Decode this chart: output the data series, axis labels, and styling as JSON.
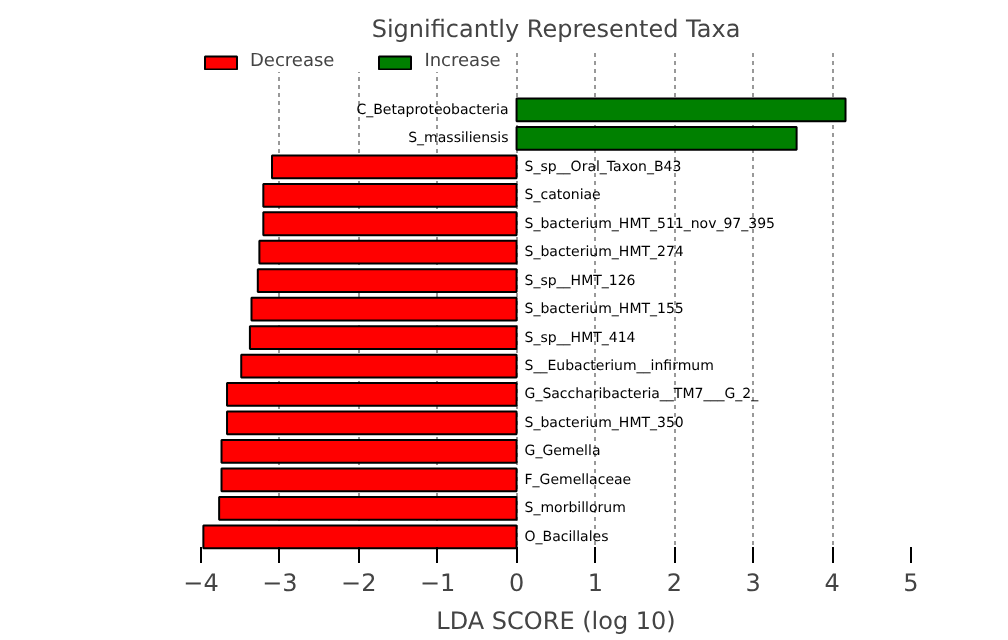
{
  "chart_data": {
    "type": "bar",
    "orientation": "horizontal",
    "title": "Significantly Represented Taxa",
    "xlabel": "LDA SCORE (log 10)",
    "categories": [
      "C_Betaproteobacteria",
      "S_massiliensis",
      "S_sp__Oral_Taxon_B43",
      "S_catoniae",
      "S_bacterium_HMT_511_nov_97_395",
      "S_bacterium_HMT_274",
      "S_sp__HMT_126",
      "S_bacterium_HMT_155",
      "S_sp__HMT_414",
      "S__Eubacterium__infirmum",
      "G_Saccharibacteria__TM7___G_2_",
      "S_bacterium_HMT_350",
      "G_Gemella",
      "F_Gemellaceae",
      "S_morbillorum",
      "O_Bacillales"
    ],
    "series": [
      {
        "name": "Decrease",
        "color": "#ff0000",
        "values": [
          null,
          null,
          -3.1,
          -3.21,
          -3.21,
          -3.26,
          -3.28,
          -3.36,
          -3.38,
          -3.49,
          -3.67,
          -3.67,
          -3.74,
          -3.74,
          -3.77,
          -3.97
        ]
      },
      {
        "name": "Increase",
        "color": "#008000",
        "values": [
          4.17,
          3.55,
          null,
          null,
          null,
          null,
          null,
          null,
          null,
          null,
          null,
          null,
          null,
          null,
          null,
          null
        ]
      }
    ],
    "xlim": [
      -4,
      5
    ],
    "xticks": [
      {
        "value": -4,
        "label": "−4"
      },
      {
        "value": -3,
        "label": "−3"
      },
      {
        "value": -2,
        "label": "−2"
      },
      {
        "value": -1,
        "label": "−1"
      },
      0,
      1,
      2,
      3,
      4,
      5
    ],
    "grid": "x",
    "legend": "top left",
    "tick_labels": "x"
  }
}
